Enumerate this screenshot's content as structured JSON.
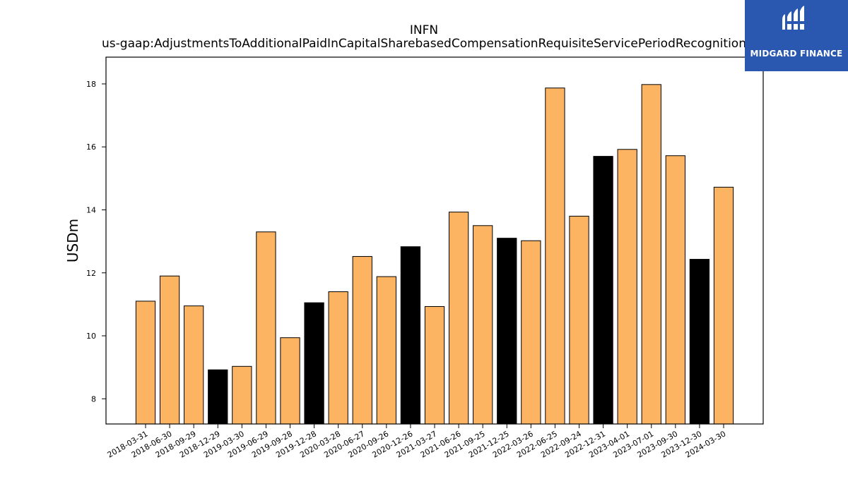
{
  "chart_data": {
    "type": "bar",
    "title": "INFN",
    "subtitle": "us-gaap:AdjustmentsToAdditionalPaidInCapitalSharebasedCompensationRequisiteServicePeriodRecognition",
    "xlabel": "",
    "ylabel": "USDm",
    "ylim": [
      7.2,
      18.85
    ],
    "yticks": [
      8,
      10,
      12,
      14,
      16,
      18
    ],
    "grid": false,
    "categories": [
      "2018-03-31",
      "2018-06-30",
      "2018-09-29",
      "2018-12-29",
      "2019-03-30",
      "2019-06-29",
      "2019-09-28",
      "2019-12-28",
      "2020-03-28",
      "2020-06-27",
      "2020-09-26",
      "2020-12-26",
      "2021-03-27",
      "2021-06-26",
      "2021-09-25",
      "2021-12-25",
      "2022-03-26",
      "2022-06-25",
      "2022-09-24",
      "2022-12-31",
      "2023-04-01",
      "2023-07-01",
      "2023-09-30",
      "2023-12-30",
      "2024-03-30"
    ],
    "values": [
      11.1,
      11.9,
      10.95,
      8.92,
      9.03,
      13.3,
      9.94,
      11.05,
      11.4,
      12.52,
      11.88,
      12.83,
      10.93,
      13.93,
      13.5,
      13.1,
      13.02,
      17.87,
      13.8,
      15.7,
      15.92,
      17.98,
      15.72,
      12.43,
      14.72
    ],
    "colors": [
      "#fdb462",
      "#fdb462",
      "#fdb462",
      "#000000",
      "#fdb462",
      "#fdb462",
      "#fdb462",
      "#000000",
      "#fdb462",
      "#fdb462",
      "#fdb462",
      "#000000",
      "#fdb462",
      "#fdb462",
      "#fdb462",
      "#000000",
      "#fdb462",
      "#fdb462",
      "#fdb462",
      "#000000",
      "#fdb462",
      "#fdb462",
      "#fdb462",
      "#000000",
      "#fdb462"
    ]
  },
  "logo": {
    "text": "MIDGARD FINANCE",
    "background": "#2a57b0"
  }
}
